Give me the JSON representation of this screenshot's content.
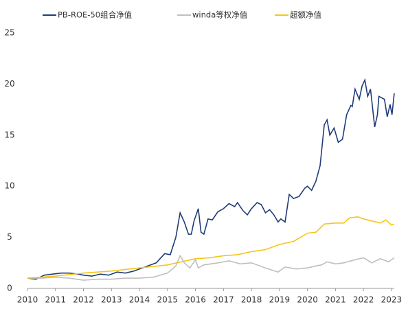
{
  "chart_data": {
    "type": "line",
    "xlim": [
      2010,
      2023.1
    ],
    "xticks": [
      2010,
      2011,
      2012,
      2013,
      2014,
      2015,
      2016,
      2017,
      2018,
      2019,
      2020,
      2021,
      2022,
      2023
    ],
    "ylim": [
      0,
      25
    ],
    "yticks": [
      0,
      5,
      10,
      15,
      20,
      25
    ],
    "grid": false,
    "series": [
      {
        "name": "PB-ROE-50组合净值",
        "color": "#1f3b7a",
        "x": [
          2010.0,
          2010.3,
          2010.6,
          2010.9,
          2011.2,
          2011.5,
          2011.8,
          2012.0,
          2012.3,
          2012.6,
          2012.9,
          2013.2,
          2013.5,
          2013.8,
          2014.0,
          2014.3,
          2014.6,
          2014.9,
          2015.1,
          2015.3,
          2015.45,
          2015.6,
          2015.75,
          2015.85,
          2015.95,
          2016.1,
          2016.2,
          2016.3,
          2016.45,
          2016.6,
          2016.8,
          2017.0,
          2017.2,
          2017.4,
          2017.5,
          2017.7,
          2017.85,
          2018.0,
          2018.2,
          2018.35,
          2018.5,
          2018.65,
          2018.8,
          2018.95,
          2019.05,
          2019.2,
          2019.35,
          2019.5,
          2019.7,
          2019.9,
          2020.0,
          2020.15,
          2020.3,
          2020.45,
          2020.6,
          2020.7,
          2020.8,
          2020.95,
          2021.1,
          2021.25,
          2021.4,
          2021.55,
          2021.6,
          2021.7,
          2021.85,
          2021.95,
          2022.05,
          2022.15,
          2022.25,
          2022.4,
          2022.5,
          2022.55,
          2022.75,
          2022.85,
          2022.95,
          2023.02,
          2023.1
        ],
        "values": [
          1.0,
          0.9,
          1.3,
          1.4,
          1.5,
          1.5,
          1.4,
          1.3,
          1.2,
          1.4,
          1.3,
          1.6,
          1.5,
          1.7,
          1.9,
          2.2,
          2.5,
          3.4,
          3.3,
          5.0,
          7.4,
          6.5,
          5.3,
          5.3,
          6.6,
          7.8,
          5.5,
          5.3,
          6.8,
          6.7,
          7.5,
          7.8,
          8.3,
          8.0,
          8.4,
          7.6,
          7.2,
          7.8,
          8.4,
          8.2,
          7.4,
          7.7,
          7.2,
          6.5,
          6.8,
          6.5,
          9.2,
          8.8,
          9.0,
          9.8,
          10.0,
          9.6,
          10.5,
          12.0,
          16.0,
          16.5,
          15.0,
          15.7,
          14.3,
          14.6,
          17.0,
          17.9,
          17.8,
          19.5,
          18.5,
          19.8,
          20.4,
          18.8,
          19.5,
          15.8,
          17.0,
          18.8,
          18.5,
          16.8,
          18.0,
          17.0,
          19.1
        ]
      },
      {
        "name": "winda等权净值",
        "color": "#bfbfbf",
        "x": [
          2010.0,
          2010.5,
          2011.0,
          2011.5,
          2012.0,
          2012.5,
          2013.0,
          2013.5,
          2014.0,
          2014.5,
          2015.0,
          2015.3,
          2015.45,
          2015.6,
          2015.8,
          2016.0,
          2016.1,
          2016.3,
          2016.8,
          2017.2,
          2017.6,
          2018.0,
          2018.5,
          2018.95,
          2019.2,
          2019.6,
          2020.0,
          2020.3,
          2020.5,
          2020.7,
          2021.0,
          2021.3,
          2021.7,
          2022.0,
          2022.3,
          2022.6,
          2022.9,
          2023.1
        ],
        "values": [
          1.0,
          1.0,
          1.1,
          1.0,
          0.8,
          0.9,
          0.9,
          1.0,
          1.0,
          1.1,
          1.5,
          2.2,
          3.2,
          2.5,
          2.0,
          2.8,
          2.0,
          2.3,
          2.5,
          2.7,
          2.4,
          2.5,
          2.0,
          1.6,
          2.1,
          1.9,
          2.0,
          2.2,
          2.3,
          2.6,
          2.4,
          2.5,
          2.8,
          3.0,
          2.5,
          2.9,
          2.6,
          3.0
        ]
      },
      {
        "name": "超额净值",
        "color": "#f5c518",
        "x": [
          2010.0,
          2011.0,
          2012.0,
          2013.0,
          2014.0,
          2015.0,
          2015.5,
          2016.0,
          2016.5,
          2017.0,
          2017.5,
          2018.0,
          2018.5,
          2019.0,
          2019.5,
          2020.0,
          2020.3,
          2020.6,
          2021.0,
          2021.3,
          2021.5,
          2021.8,
          2022.0,
          2022.3,
          2022.6,
          2022.8,
          2023.0,
          2023.1
        ],
        "values": [
          1.0,
          1.2,
          1.5,
          1.7,
          2.0,
          2.3,
          2.6,
          2.9,
          3.0,
          3.2,
          3.3,
          3.6,
          3.8,
          4.3,
          4.6,
          5.4,
          5.5,
          6.3,
          6.4,
          6.4,
          6.9,
          7.0,
          6.8,
          6.6,
          6.4,
          6.7,
          6.2,
          6.3
        ]
      }
    ]
  }
}
